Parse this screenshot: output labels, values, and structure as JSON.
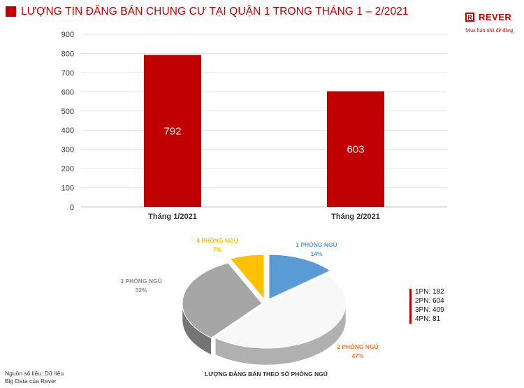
{
  "title": "LƯỢNG TIN ĐĂNG BÁN CHUNG CƯ TẠI QUẬN 1 TRONG THÁNG 1 – 2/2021",
  "logo": {
    "box_letter": "R",
    "name": "REVER",
    "tagline": "Mua bán nhà dễ dàng"
  },
  "colors": {
    "accent": "#c00000",
    "pie_1pn": "#5b9bd5",
    "pie_2pn": "#f8f8f8",
    "pie_3pn": "#a6a6a6",
    "pie_4pn": "#ffc000"
  },
  "chart_data": [
    {
      "type": "bar",
      "categories": [
        "Tháng 1/2021",
        "Tháng 2/2021"
      ],
      "values": [
        792,
        603
      ],
      "data_labels": [
        "792",
        "603"
      ],
      "ylim": [
        0,
        900
      ],
      "y_ticks": [
        0,
        100,
        200,
        300,
        400,
        500,
        600,
        700,
        800,
        900
      ],
      "grid": true,
      "color": "#c00000"
    },
    {
      "type": "pie",
      "title": "LƯỢNG ĐĂNG BÁN THEO SỐ PHÒNG NGỦ",
      "slices": [
        {
          "label": "1 PHÒNG NGỦ",
          "percent": "14%",
          "value": 14,
          "color": "#5b9bd5"
        },
        {
          "label": "2 PHÒNG NGỦ",
          "percent": "47%",
          "value": 47,
          "color": "#f8f8f8"
        },
        {
          "label": "3 PHÒNG NGỦ",
          "percent": "32%",
          "value": 32,
          "color": "#a6a6a6"
        },
        {
          "label": "4 PHÒNG NGỦ",
          "percent": "7%",
          "value": 7,
          "color": "#ffc000"
        }
      ],
      "legend": [
        "1PN: 182",
        "2PN: 604",
        "3PN: 409",
        "4PN: 81"
      ]
    }
  ],
  "source": {
    "line1": "Nguồn số liệu: Dữ liệu",
    "line2": "Big Data của Rever"
  }
}
